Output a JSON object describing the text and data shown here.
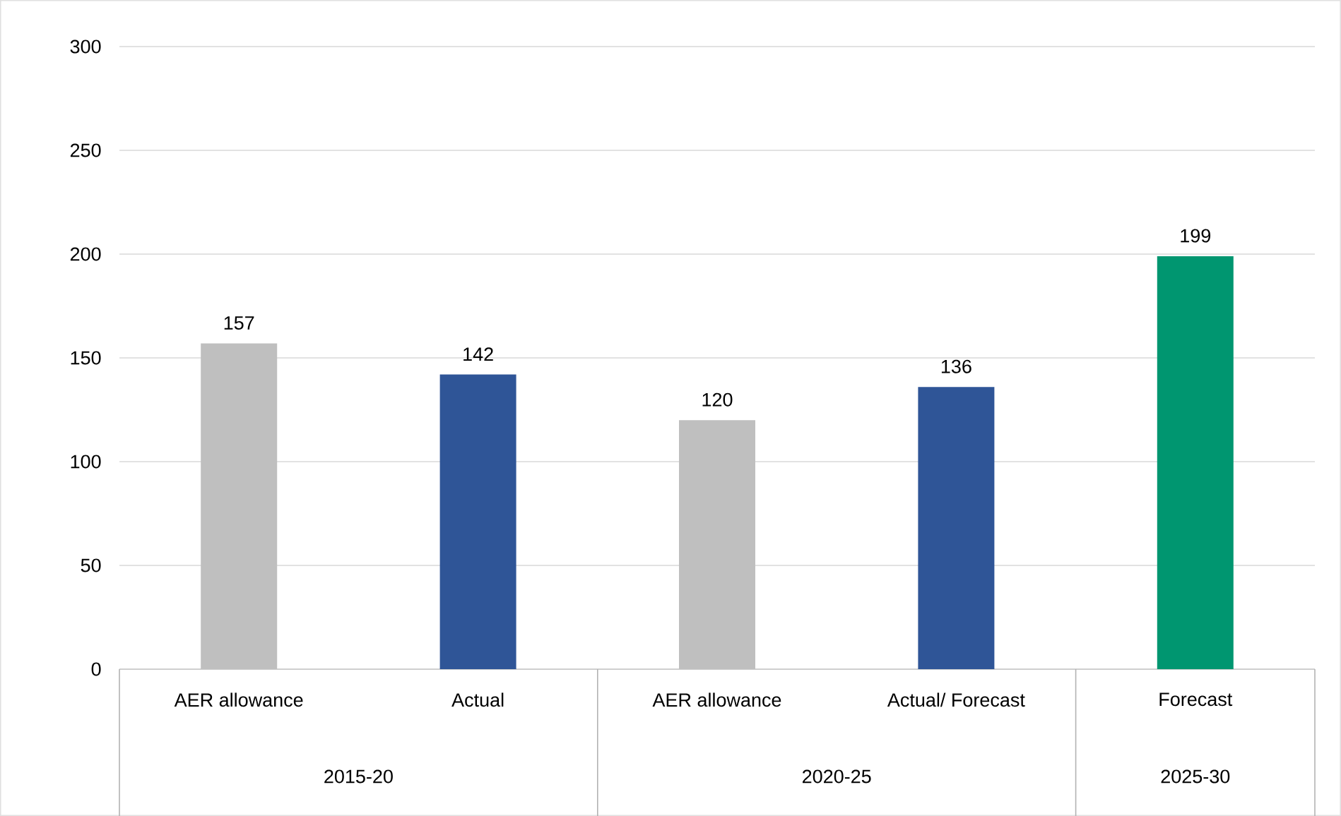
{
  "chart_data": {
    "type": "bar",
    "categories": [
      "AER allowance",
      "Actual",
      "AER allowance",
      "Actual/ Forecast",
      "Forecast"
    ],
    "values": [
      157,
      142,
      120,
      136,
      199
    ],
    "colors": [
      "#bfbfbf",
      "#2f5597",
      "#bfbfbf",
      "#2f5597",
      "#009670"
    ],
    "ylim": [
      0,
      300
    ],
    "yticks": [
      0,
      50,
      100,
      150,
      200,
      250,
      300
    ],
    "grid": "y",
    "data_labels": true,
    "annotations": [
      "2015-20",
      "2020-25",
      "2025-30"
    ]
  }
}
